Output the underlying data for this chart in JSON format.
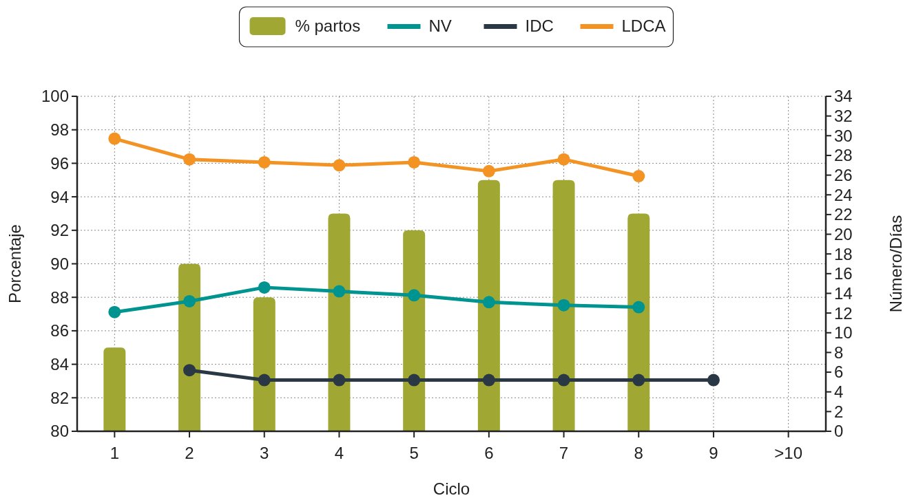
{
  "chart_data": {
    "type": "bar",
    "xlabel": "Ciclo",
    "ylabel": "Porcentaje",
    "y2label": "Número/Días",
    "categories": [
      "1",
      "2",
      "3",
      "4",
      "5",
      "6",
      "7",
      "8",
      "9",
      ">10"
    ],
    "series": [
      {
        "name": "% partos",
        "color": "#a0a833",
        "values": [
          85,
          90,
          88,
          93,
          92,
          95,
          95,
          93,
          null,
          null
        ]
      },
      {
        "name": "NV",
        "type": "line",
        "axis": "y2",
        "color": "#009490",
        "values": [
          12.1,
          13.2,
          14.6,
          14.2,
          13.8,
          13.1,
          12.8,
          12.6,
          null,
          null
        ]
      },
      {
        "name": "IDC",
        "type": "line",
        "axis": "y2",
        "color": "#2a3845",
        "values": [
          null,
          6.2,
          5.2,
          5.2,
          5.2,
          5.2,
          5.2,
          5.2,
          5.2,
          null
        ]
      },
      {
        "name": "LDCA",
        "type": "line",
        "axis": "y2",
        "color": "#f39323",
        "values": [
          29.7,
          27.6,
          27.3,
          27.0,
          27.3,
          26.4,
          27.6,
          25.9,
          null,
          null
        ]
      }
    ],
    "ylim": [
      80,
      100
    ],
    "yticks": [
      80,
      82,
      84,
      86,
      88,
      90,
      92,
      94,
      96,
      98,
      100
    ],
    "y2lim": [
      0,
      34
    ],
    "y2ticks": [
      0,
      2,
      4,
      6,
      8,
      10,
      12,
      14,
      16,
      18,
      20,
      22,
      24,
      26,
      28,
      30,
      32,
      34
    ],
    "grid": true,
    "legend": "top",
    "marker": "circle"
  }
}
